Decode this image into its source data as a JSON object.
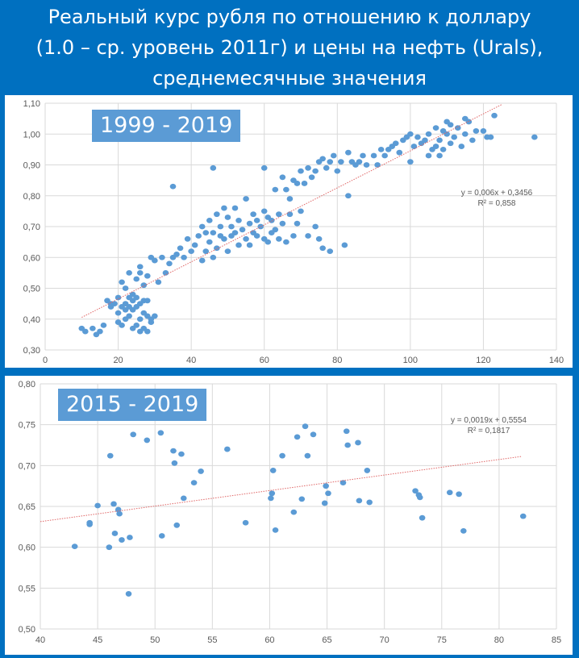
{
  "header": {
    "line1": "Реальный курс рубля по отношению к доллару",
    "line2": "(1.0 – ср. уровень 2011г) и цены на нефть (Urals),",
    "line3": "среднемесячные значения"
  },
  "colors": {
    "background": "#0070c0",
    "points": "#5b9bd5",
    "trendline": "#e06666",
    "badge": "#5b9bd5",
    "grid": "#d9d9d9"
  },
  "chart_data": [
    {
      "type": "scatter",
      "badge": "1999 - 2019",
      "xlim": [
        0,
        140
      ],
      "ylim": [
        0.3,
        1.1
      ],
      "xticks": [
        0,
        20,
        40,
        60,
        80,
        100,
        120,
        140
      ],
      "xtick_labels": [
        "0",
        "20",
        "40",
        "60",
        "80",
        "100",
        "120",
        "140"
      ],
      "yticks": [
        0.3,
        0.4,
        0.5,
        0.6,
        0.7,
        0.8,
        0.9,
        1.0,
        1.1
      ],
      "ytick_labels": [
        "0,30",
        "0,40",
        "0,50",
        "0,60",
        "0,70",
        "0,80",
        "0,90",
        "1,00",
        "1,10"
      ],
      "grid": true,
      "trendline": {
        "slope": 0.006,
        "intercept": 0.3456,
        "x_range": [
          10,
          125
        ]
      },
      "equation": "y = 0,006x + 0,3456",
      "r2": "R² = 0,858",
      "points": [
        [
          10,
          0.37
        ],
        [
          11,
          0.36
        ],
        [
          13,
          0.37
        ],
        [
          14,
          0.35
        ],
        [
          15,
          0.36
        ],
        [
          16,
          0.38
        ],
        [
          17,
          0.46
        ],
        [
          18,
          0.45
        ],
        [
          18,
          0.44
        ],
        [
          19,
          0.45
        ],
        [
          20,
          0.39
        ],
        [
          20,
          0.42
        ],
        [
          21,
          0.38
        ],
        [
          21,
          0.44
        ],
        [
          22,
          0.4
        ],
        [
          22,
          0.43
        ],
        [
          22,
          0.45
        ],
        [
          23,
          0.41
        ],
        [
          23,
          0.44
        ],
        [
          23,
          0.47
        ],
        [
          24,
          0.37
        ],
        [
          24,
          0.43
        ],
        [
          24,
          0.46
        ],
        [
          25,
          0.38
        ],
        [
          25,
          0.44
        ],
        [
          25,
          0.47
        ],
        [
          26,
          0.36
        ],
        [
          26,
          0.4
        ],
        [
          26,
          0.45
        ],
        [
          27,
          0.37
        ],
        [
          27,
          0.42
        ],
        [
          27,
          0.46
        ],
        [
          28,
          0.36
        ],
        [
          28,
          0.41
        ],
        [
          28,
          0.46
        ],
        [
          29,
          0.39
        ],
        [
          29,
          0.4
        ],
        [
          30,
          0.41
        ],
        [
          20,
          0.47
        ],
        [
          21,
          0.52
        ],
        [
          22,
          0.5
        ],
        [
          23,
          0.55
        ],
        [
          24,
          0.48
        ],
        [
          25,
          0.53
        ],
        [
          26,
          0.55
        ],
        [
          26,
          0.57
        ],
        [
          27,
          0.51
        ],
        [
          28,
          0.54
        ],
        [
          29,
          0.6
        ],
        [
          30,
          0.59
        ],
        [
          31,
          0.52
        ],
        [
          32,
          0.6
        ],
        [
          33,
          0.55
        ],
        [
          34,
          0.58
        ],
        [
          35,
          0.6
        ],
        [
          35,
          0.83
        ],
        [
          36,
          0.61
        ],
        [
          37,
          0.63
        ],
        [
          38,
          0.6
        ],
        [
          39,
          0.66
        ],
        [
          40,
          0.62
        ],
        [
          41,
          0.64
        ],
        [
          42,
          0.67
        ],
        [
          43,
          0.59
        ],
        [
          43,
          0.7
        ],
        [
          44,
          0.62
        ],
        [
          44,
          0.68
        ],
        [
          45,
          0.65
        ],
        [
          45,
          0.72
        ],
        [
          46,
          0.89
        ],
        [
          46,
          0.6
        ],
        [
          46,
          0.68
        ],
        [
          47,
          0.63
        ],
        [
          47,
          0.74
        ],
        [
          48,
          0.67
        ],
        [
          48,
          0.7
        ],
        [
          49,
          0.76
        ],
        [
          49,
          0.66
        ],
        [
          50,
          0.73
        ],
        [
          50,
          0.62
        ],
        [
          51,
          0.67
        ],
        [
          51,
          0.7
        ],
        [
          52,
          0.68
        ],
        [
          52,
          0.76
        ],
        [
          53,
          0.64
        ],
        [
          53,
          0.72
        ],
        [
          54,
          0.69
        ],
        [
          55,
          0.66
        ],
        [
          55,
          0.79
        ],
        [
          56,
          0.71
        ],
        [
          56,
          0.64
        ],
        [
          57,
          0.68
        ],
        [
          57,
          0.74
        ],
        [
          58,
          0.72
        ],
        [
          58,
          0.67
        ],
        [
          59,
          0.7
        ],
        [
          60,
          0.89
        ],
        [
          60,
          0.66
        ],
        [
          60,
          0.75
        ],
        [
          61,
          0.73
        ],
        [
          61,
          0.65
        ],
        [
          62,
          0.72
        ],
        [
          62,
          0.68
        ],
        [
          63,
          0.82
        ],
        [
          63,
          0.69
        ],
        [
          64,
          0.74
        ],
        [
          64,
          0.66
        ],
        [
          65,
          0.86
        ],
        [
          65,
          0.71
        ],
        [
          66,
          0.82
        ],
        [
          66,
          0.65
        ],
        [
          67,
          0.79
        ],
        [
          67,
          0.74
        ],
        [
          68,
          0.85
        ],
        [
          68,
          0.67
        ],
        [
          69,
          0.84
        ],
        [
          69,
          0.71
        ],
        [
          70,
          0.88
        ],
        [
          70,
          0.75
        ],
        [
          71,
          0.84
        ],
        [
          72,
          0.89
        ],
        [
          72,
          0.67
        ],
        [
          73,
          0.86
        ],
        [
          74,
          0.88
        ],
        [
          74,
          0.7
        ],
        [
          75,
          0.91
        ],
        [
          75,
          0.66
        ],
        [
          76,
          0.92
        ],
        [
          76,
          0.63
        ],
        [
          77,
          0.89
        ],
        [
          78,
          0.91
        ],
        [
          78,
          0.62
        ],
        [
          79,
          0.93
        ],
        [
          80,
          0.88
        ],
        [
          81,
          0.91
        ],
        [
          82,
          0.64
        ],
        [
          83,
          0.94
        ],
        [
          83,
          0.8
        ],
        [
          84,
          0.91
        ],
        [
          85,
          0.9
        ],
        [
          86,
          0.91
        ],
        [
          87,
          0.93
        ],
        [
          88,
          0.9
        ],
        [
          90,
          0.93
        ],
        [
          91,
          0.9
        ],
        [
          92,
          0.95
        ],
        [
          93,
          0.93
        ],
        [
          94,
          0.95
        ],
        [
          95,
          0.96
        ],
        [
          96,
          0.97
        ],
        [
          97,
          0.94
        ],
        [
          98,
          0.98
        ],
        [
          99,
          0.99
        ],
        [
          100,
          0.91
        ],
        [
          100,
          1.0
        ],
        [
          101,
          0.96
        ],
        [
          102,
          0.99
        ],
        [
          103,
          0.97
        ],
        [
          104,
          0.98
        ],
        [
          105,
          0.93
        ],
        [
          105,
          1.0
        ],
        [
          106,
          0.95
        ],
        [
          107,
          0.96
        ],
        [
          107,
          1.02
        ],
        [
          108,
          0.98
        ],
        [
          108,
          0.93
        ],
        [
          109,
          1.01
        ],
        [
          109,
          0.95
        ],
        [
          110,
          1.0
        ],
        [
          110,
          1.04
        ],
        [
          111,
          0.97
        ],
        [
          111,
          1.03
        ],
        [
          112,
          0.99
        ],
        [
          113,
          1.02
        ],
        [
          114,
          0.96
        ],
        [
          115,
          1.05
        ],
        [
          115,
          1.0
        ],
        [
          116,
          1.04
        ],
        [
          117,
          0.98
        ],
        [
          118,
          1.01
        ],
        [
          120,
          1.01
        ],
        [
          121,
          0.99
        ],
        [
          122,
          0.99
        ],
        [
          123,
          1.06
        ],
        [
          134,
          0.99
        ]
      ]
    },
    {
      "type": "scatter",
      "badge": "2015 - 2019",
      "xlim": [
        40,
        85
      ],
      "ylim": [
        0.5,
        0.8
      ],
      "xticks": [
        40,
        45,
        50,
        55,
        60,
        65,
        70,
        75,
        80,
        85
      ],
      "xtick_labels": [
        "40",
        "45",
        "50",
        "55",
        "60",
        "65",
        "70",
        "75",
        "80",
        "85"
      ],
      "yticks": [
        0.5,
        0.55,
        0.6,
        0.65,
        0.7,
        0.75,
        0.8
      ],
      "ytick_labels": [
        "0,50",
        "0,55",
        "0,60",
        "0,65",
        "0,70",
        "0,75",
        "0,80"
      ],
      "grid": true,
      "trendline": {
        "slope": 0.0019,
        "intercept": 0.5554,
        "x_range": [
          40,
          82
        ]
      },
      "equation": "y = 0,0019x + 0,5554",
      "r2": "R² = 0,1817",
      "points": [
        [
          43,
          0.601
        ],
        [
          44.3,
          0.63
        ],
        [
          44.3,
          0.628
        ],
        [
          45,
          0.651
        ],
        [
          46,
          0.6
        ],
        [
          46.1,
          0.712
        ],
        [
          46.4,
          0.653
        ],
        [
          46.5,
          0.617
        ],
        [
          46.8,
          0.646
        ],
        [
          46.9,
          0.641
        ],
        [
          47.1,
          0.609
        ],
        [
          47.7,
          0.543
        ],
        [
          47.8,
          0.612
        ],
        [
          48.1,
          0.738
        ],
        [
          49.3,
          0.731
        ],
        [
          50.5,
          0.74
        ],
        [
          50.6,
          0.614
        ],
        [
          51.6,
          0.718
        ],
        [
          51.7,
          0.703
        ],
        [
          51.9,
          0.627
        ],
        [
          52.3,
          0.714
        ],
        [
          52.5,
          0.66
        ],
        [
          53.4,
          0.679
        ],
        [
          54,
          0.693
        ],
        [
          56.3,
          0.72
        ],
        [
          57.9,
          0.63
        ],
        [
          60.1,
          0.66
        ],
        [
          60.2,
          0.666
        ],
        [
          60.3,
          0.694
        ],
        [
          60.5,
          0.621
        ],
        [
          61.1,
          0.712
        ],
        [
          62.1,
          0.643
        ],
        [
          62.4,
          0.735
        ],
        [
          62.8,
          0.659
        ],
        [
          63.1,
          0.748
        ],
        [
          63.3,
          0.712
        ],
        [
          63.8,
          0.738
        ],
        [
          64.8,
          0.654
        ],
        [
          64.9,
          0.675
        ],
        [
          65.1,
          0.666
        ],
        [
          66.4,
          0.679
        ],
        [
          66.7,
          0.742
        ],
        [
          66.8,
          0.725
        ],
        [
          67.7,
          0.728
        ],
        [
          67.8,
          0.657
        ],
        [
          68.5,
          0.694
        ],
        [
          68.7,
          0.655
        ],
        [
          72.7,
          0.669
        ],
        [
          73,
          0.664
        ],
        [
          73.1,
          0.661
        ],
        [
          73.3,
          0.636
        ],
        [
          75.7,
          0.667
        ],
        [
          76.5,
          0.665
        ],
        [
          76.9,
          0.62
        ],
        [
          82.1,
          0.638
        ]
      ]
    }
  ]
}
